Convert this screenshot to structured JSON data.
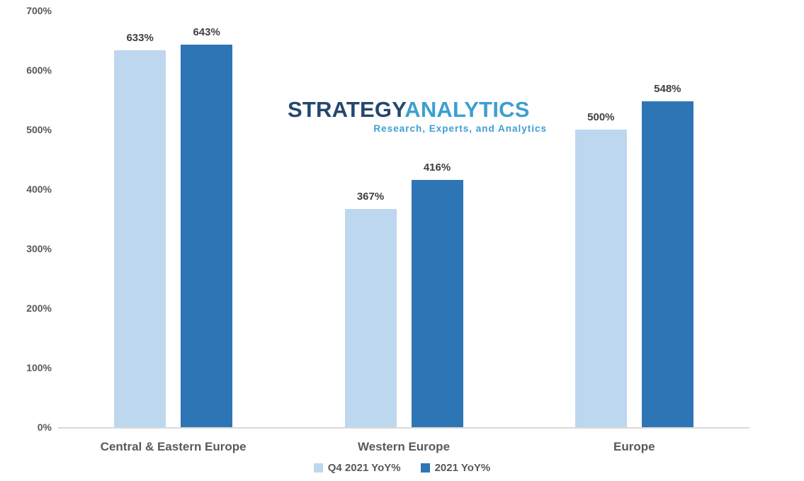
{
  "logo": {
    "part1": "STRATEGY",
    "part2": "ANALYTICS",
    "tagline": "Research, Experts, and Analytics",
    "part1_color": "#24476E",
    "part2_color": "#3D9FD3"
  },
  "chart_data": {
    "type": "bar",
    "title": "",
    "xlabel": "",
    "ylabel": "",
    "categories": [
      "Central & Eastern Europe",
      "Western Europe",
      "Europe"
    ],
    "series": [
      {
        "name": "Q4 2021 YoY%",
        "color": "#BDD7EE",
        "values": [
          633,
          367,
          500
        ]
      },
      {
        "name": "2021 YoY%",
        "color": "#2E75B6",
        "values": [
          643,
          416,
          548
        ]
      }
    ],
    "value_suffix": "%",
    "data_labels": [
      "633%",
      "643%",
      "367%",
      "416%",
      "500%",
      "548%"
    ],
    "ylim": [
      0,
      700
    ],
    "ytick_step": 100,
    "yticks": [
      "0%",
      "100%",
      "200%",
      "300%",
      "400%",
      "500%",
      "600%",
      "700%"
    ],
    "grid": false,
    "legend_position": "bottom",
    "axis_line_color": "#D9D9D9",
    "label_color": "#404040",
    "tick_color": "#595959"
  }
}
